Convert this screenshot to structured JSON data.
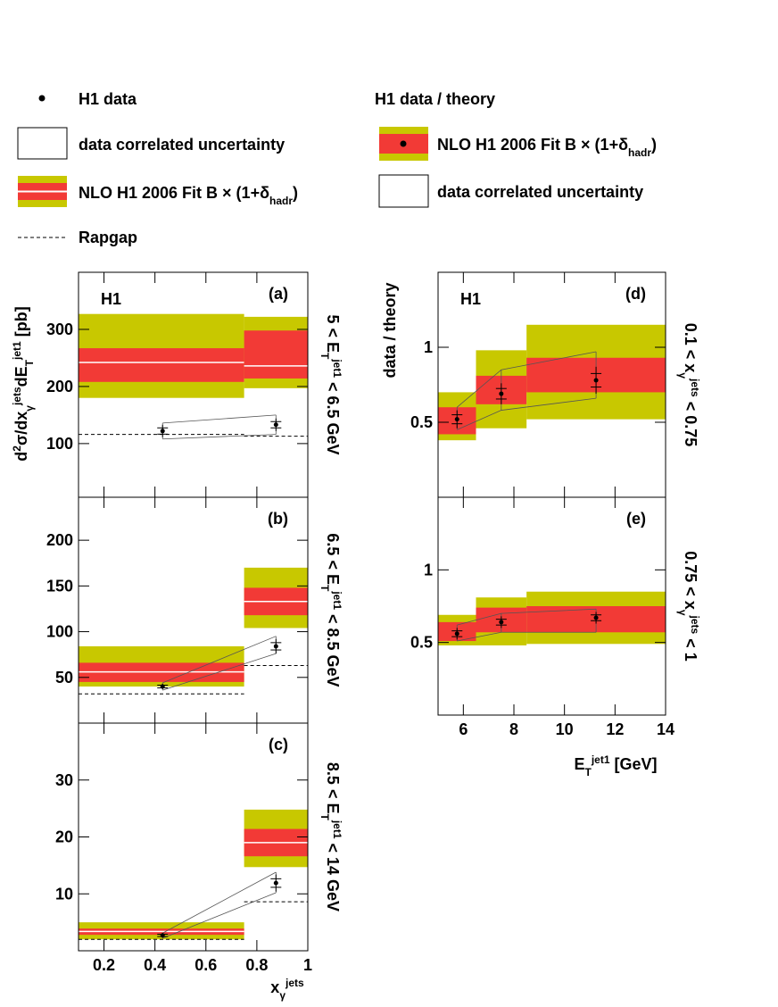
{
  "colors": {
    "outer": "#c8c800",
    "inner": "#f23a36",
    "theory": "#ffffff"
  },
  "legend": {
    "h1_data": "H1 data",
    "corr": "data correlated uncertainty",
    "nlo": [
      {
        "text": "NLO H1 2006 Fit B"
      },
      {
        "text": " × (1+"
      },
      {
        "text": "δ"
      },
      {
        "sub": "hadr"
      },
      {
        "text": ")"
      }
    ],
    "rapgap": "Rapgap",
    "ratio_title": "H1 data / theory",
    "ratio_nlo": [
      {
        "text": "NLO H1 2006 Fit B"
      },
      {
        "text": " × (1+"
      },
      {
        "text": "δ"
      },
      {
        "sub": "hadr"
      },
      {
        "text": ")"
      }
    ],
    "ratio_corr": "data correlated uncertainty"
  },
  "chart_data": [
    {
      "type": "band",
      "label": "(a)",
      "experiment": "H1",
      "y_title": [
        {
          "text": "d"
        },
        {
          "sup": "2"
        },
        {
          "text": "σ/dx"
        },
        {
          "sub": "γ"
        },
        {
          "sup": "jets"
        },
        {
          "text": "dE"
        },
        {
          "sub": "T"
        },
        {
          "sup": "jet1"
        },
        {
          "text": " [pb]"
        }
      ],
      "range_label": [
        {
          "text": "5 < E"
        },
        {
          "sub": "T"
        },
        {
          "sup": "jet1"
        },
        {
          "text": " < 6.5 GeV"
        }
      ],
      "xlim": [
        0.1,
        1
      ],
      "ylim": [
        6,
        400
      ],
      "yticks": [
        100,
        200,
        300
      ],
      "bins": [
        0.1,
        0.75,
        1
      ],
      "outer_low": [
        180,
        197
      ],
      "outer_high": [
        327,
        322
      ],
      "inner_low": [
        208,
        214
      ],
      "inner_high": [
        267,
        298
      ],
      "theory": [
        242,
        236
      ],
      "rapgap": [
        116,
        113
      ],
      "x": [
        0.43,
        0.875
      ],
      "values": [
        122,
        133
      ],
      "errors": [
        11,
        11
      ],
      "corr_low": [
        108,
        116
      ],
      "corr_high": [
        136,
        150
      ]
    },
    {
      "type": "band",
      "label": "(b)",
      "range_label": [
        {
          "text": "6.5 < E"
        },
        {
          "sub": "T"
        },
        {
          "sup": "jet1"
        },
        {
          "text": " < 8.5 GeV"
        }
      ],
      "xlim": [
        0.1,
        1
      ],
      "ylim": [
        0,
        247
      ],
      "yticks": [
        50,
        100,
        150,
        200
      ],
      "bins": [
        0.1,
        0.75,
        1
      ],
      "outer_low": [
        40,
        104
      ],
      "outer_high": [
        84,
        170
      ],
      "inner_low": [
        45,
        118
      ],
      "inner_high": [
        66,
        148
      ],
      "theory": [
        56,
        133
      ],
      "rapgap": [
        32,
        63
      ],
      "x": [
        0.43,
        0.875
      ],
      "values": [
        40,
        84
      ],
      "errors": [
        3,
        8
      ],
      "corr_low": [
        36,
        76
      ],
      "corr_high": [
        44,
        95
      ]
    },
    {
      "type": "band",
      "label": "(c)",
      "range_label": [
        {
          "text": "8.5 < E"
        },
        {
          "sub": "T"
        },
        {
          "sup": "jet1"
        },
        {
          "text": " < 14 GeV"
        }
      ],
      "x_title": [
        {
          "text": "x"
        },
        {
          "sub": "γ"
        },
        {
          "sup": "jets"
        }
      ],
      "xlim": [
        0.1,
        1
      ],
      "xticks": [
        0.2,
        0.4,
        0.6,
        0.8,
        1
      ],
      "ylim": [
        0,
        40
      ],
      "yticks": [
        10,
        20,
        30
      ],
      "bins": [
        0.1,
        0.75,
        1
      ],
      "outer_low": [
        2,
        14.7
      ],
      "outer_high": [
        5,
        24.8
      ],
      "inner_low": [
        2.8,
        16.6
      ],
      "inner_high": [
        3.9,
        21.4
      ],
      "theory": [
        3.4,
        19
      ],
      "rapgap": [
        2,
        8.6
      ],
      "x": [
        0.43,
        0.875
      ],
      "values": [
        2.7,
        11.9
      ],
      "errors": [
        0.4,
        1.5
      ],
      "corr_low": [
        2.2,
        10.2
      ],
      "corr_high": [
        3.1,
        13.8
      ]
    },
    {
      "type": "band",
      "label": "(d)",
      "experiment": "H1",
      "y_title": [
        {
          "text": "data / theory"
        }
      ],
      "range_label": [
        {
          "text": "0.1 < x"
        },
        {
          "sub": "γ"
        },
        {
          "sup": "jets"
        },
        {
          "text": " < 0.75"
        }
      ],
      "xlim": [
        5,
        14
      ],
      "ylim": [
        0,
        1.5
      ],
      "yticks": [
        0.5,
        1
      ],
      "bins": [
        5,
        6.5,
        8.5,
        14
      ],
      "outer_low": [
        0.38,
        0.46,
        0.52
      ],
      "outer_high": [
        0.7,
        0.98,
        1.15
      ],
      "inner_low": [
        0.42,
        0.62,
        0.7
      ],
      "inner_high": [
        0.6,
        0.81,
        0.93
      ],
      "x": [
        5.75,
        7.5,
        11.25
      ],
      "values": [
        0.52,
        0.69,
        0.78
      ],
      "errors": [
        0.06,
        0.07,
        0.09
      ],
      "corr_low": [
        0.45,
        0.58,
        0.66
      ],
      "corr_high": [
        0.6,
        0.85,
        0.97
      ]
    },
    {
      "type": "band",
      "label": "(e)",
      "range_label": [
        {
          "text": "0.75 < x"
        },
        {
          "sub": "γ"
        },
        {
          "sup": "jets"
        },
        {
          "text": " < 1"
        }
      ],
      "x_title": [
        {
          "text": "E"
        },
        {
          "sub": "T"
        },
        {
          "sup": "jet1"
        },
        {
          "text": " [GeV]"
        }
      ],
      "xlim": [
        5,
        14
      ],
      "xticks": [
        6,
        8,
        10,
        12,
        14
      ],
      "ylim": [
        0,
        1.5
      ],
      "yticks": [
        0.5,
        1
      ],
      "bins": [
        5,
        6.5,
        8.5,
        14
      ],
      "outer_low": [
        0.48,
        0.48,
        0.49
      ],
      "outer_high": [
        0.69,
        0.81,
        0.85
      ],
      "inner_low": [
        0.51,
        0.57,
        0.57
      ],
      "inner_high": [
        0.64,
        0.74,
        0.75
      ],
      "x": [
        5.75,
        7.5,
        11.25
      ],
      "values": [
        0.56,
        0.64,
        0.67
      ],
      "errors": [
        0.04,
        0.04,
        0.04
      ],
      "corr_low": [
        0.51,
        0.57,
        0.57
      ],
      "corr_high": [
        0.62,
        0.7,
        0.73
      ]
    }
  ]
}
